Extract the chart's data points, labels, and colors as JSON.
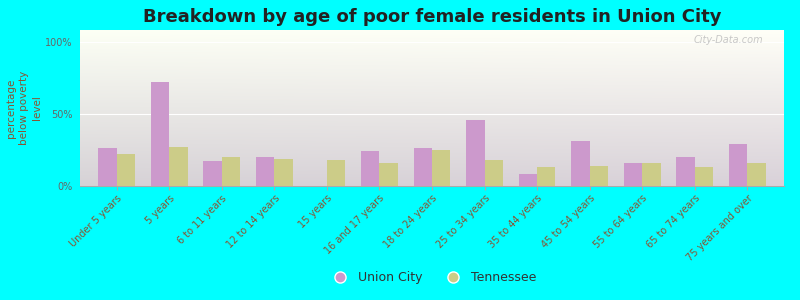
{
  "title": "Breakdown by age of poor female residents in Union City",
  "ylabel": "percentage\nbelow poverty\nlevel",
  "categories": [
    "Under 5 years",
    "5 years",
    "6 to 11 years",
    "12 to 14 years",
    "15 years",
    "16 and 17 years",
    "18 to 24 years",
    "25 to 34 years",
    "35 to 44 years",
    "45 to 54 years",
    "55 to 64 years",
    "65 to 74 years",
    "75 years and over"
  ],
  "union_city": [
    26,
    72,
    17,
    20,
    0,
    24,
    26,
    46,
    8,
    31,
    16,
    20,
    29
  ],
  "tennessee": [
    22,
    27,
    20,
    19,
    18,
    16,
    25,
    18,
    13,
    14,
    16,
    13,
    16
  ],
  "union_city_color": "#cc99cc",
  "tennessee_color": "#cccc88",
  "background_color": "#00ffff",
  "yticks": [
    0,
    50,
    100
  ],
  "ylim": [
    0,
    108
  ],
  "bar_width": 0.35,
  "title_fontsize": 13,
  "ylabel_fontsize": 7.5,
  "tick_fontsize": 7,
  "legend_fontsize": 9,
  "watermark": "City-Data.com"
}
